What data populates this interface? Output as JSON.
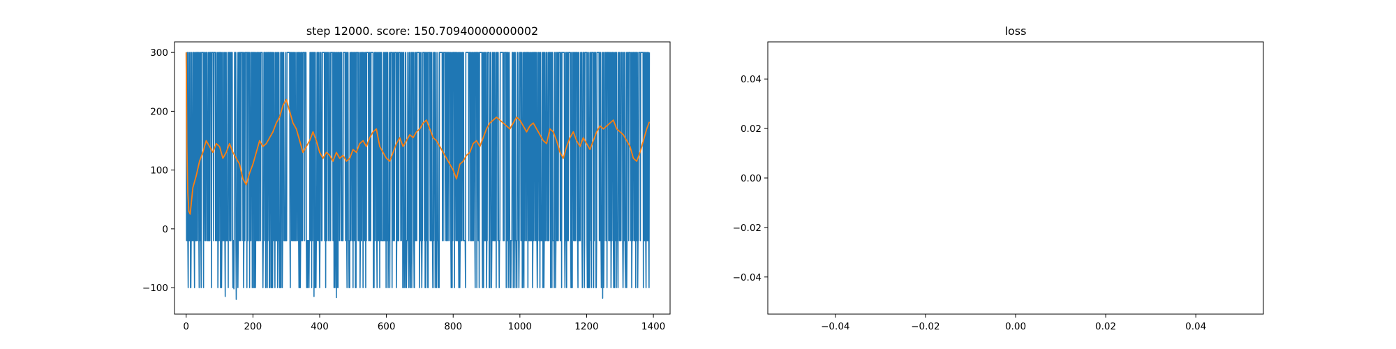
{
  "chart_data": [
    {
      "type": "line",
      "title": "step 12000. score: 150.70940000000002",
      "xlim": [
        -35,
        1450
      ],
      "ylim": [
        -145,
        318
      ],
      "xticks": [
        0,
        200,
        400,
        600,
        800,
        1000,
        1200,
        1400
      ],
      "xtick_labels": [
        "0",
        "200",
        "400",
        "600",
        "800",
        "1000",
        "1200",
        "1400"
      ],
      "yticks": [
        -100,
        0,
        100,
        200,
        300
      ],
      "ytick_labels": [
        "−100",
        "0",
        "100",
        "200",
        "300"
      ],
      "grid": false,
      "series": [
        {
          "color": "#1f77b4",
          "x_range": [
            0,
            1388
          ],
          "levels": [
            300,
            -20,
            -100
          ],
          "rare_values": [
            -120,
            -117,
            -118,
            -115,
            -102,
            98,
            80,
            299
          ],
          "x": [
            0,
            2,
            4,
            6,
            8,
            10,
            12,
            14,
            16,
            18,
            22,
            25,
            30,
            38,
            40,
            45,
            50,
            55,
            60,
            65,
            80,
            95,
            100,
            110,
            120,
            140,
            150,
            160,
            170,
            180,
            190,
            200,
            210,
            220,
            230,
            240,
            245,
            250,
            255,
            260,
            265,
            270,
            280,
            290,
            300,
            320,
            340,
            350,
            360,
            380,
            400,
            420,
            440,
            450,
            460,
            480,
            500,
            520,
            540,
            560,
            580,
            600,
            620,
            640,
            660,
            680,
            700,
            720,
            740,
            760,
            780,
            800,
            820,
            840,
            860,
            880,
            900,
            920,
            940,
            960,
            980,
            1000,
            1020,
            1040,
            1060,
            1080,
            1100,
            1120,
            1140,
            1160,
            1180,
            1200,
            1220,
            1240,
            1248,
            1260,
            1280,
            1300,
            1320,
            1340,
            1350,
            1360,
            1370,
            1380,
            1388
          ],
          "values": [
            300,
            -20,
            300,
            -100,
            300,
            -20,
            300,
            -100,
            300,
            -20,
            300,
            -100,
            300,
            -20,
            300,
            -100,
            300,
            80,
            300,
            -20,
            300,
            -100,
            300,
            -20,
            300,
            -100,
            -120,
            300,
            -20,
            300,
            -100,
            300,
            -20,
            300,
            -100,
            300,
            -20,
            300,
            -100,
            300,
            -20,
            300,
            -100,
            300,
            -20,
            300,
            -100,
            300,
            -20,
            300,
            -100,
            300,
            -20,
            -117,
            98,
            300,
            -100,
            300,
            -20,
            300,
            -100,
            300,
            -20,
            300,
            -100,
            300,
            -20,
            300,
            -100,
            300,
            -20,
            300,
            -100,
            300,
            -20,
            300,
            -100,
            300,
            -20,
            300,
            -100,
            300,
            -20,
            300,
            -100,
            300,
            -20,
            300,
            -100,
            300,
            -20,
            300,
            -100,
            300,
            -118,
            300,
            -20,
            300,
            -100,
            300,
            -20,
            300,
            -100,
            -20,
            300
          ]
        },
        {
          "color": "#ff7f0e",
          "x": [
            0,
            2,
            5,
            8,
            12,
            20,
            30,
            40,
            50,
            60,
            70,
            80,
            90,
            100,
            110,
            120,
            130,
            140,
            150,
            160,
            170,
            180,
            190,
            200,
            210,
            220,
            230,
            240,
            250,
            260,
            270,
            280,
            290,
            300,
            310,
            320,
            330,
            340,
            350,
            360,
            370,
            380,
            390,
            400,
            410,
            420,
            430,
            440,
            450,
            460,
            470,
            480,
            490,
            500,
            510,
            520,
            530,
            540,
            550,
            560,
            570,
            580,
            590,
            600,
            610,
            620,
            630,
            640,
            650,
            660,
            670,
            680,
            690,
            700,
            710,
            720,
            730,
            740,
            750,
            760,
            770,
            780,
            790,
            800,
            810,
            820,
            830,
            840,
            850,
            860,
            870,
            880,
            890,
            900,
            910,
            920,
            930,
            940,
            950,
            960,
            970,
            980,
            990,
            1000,
            1010,
            1020,
            1030,
            1040,
            1050,
            1060,
            1070,
            1080,
            1090,
            1100,
            1110,
            1120,
            1130,
            1140,
            1150,
            1160,
            1170,
            1180,
            1190,
            1200,
            1210,
            1220,
            1230,
            1240,
            1250,
            1260,
            1270,
            1280,
            1290,
            1300,
            1310,
            1320,
            1330,
            1340,
            1350,
            1360,
            1370,
            1380,
            1388
          ],
          "values": [
            300,
            140,
            60,
            30,
            25,
            70,
            90,
            115,
            130,
            150,
            140,
            130,
            145,
            140,
            120,
            130,
            145,
            130,
            120,
            110,
            85,
            75,
            95,
            110,
            130,
            150,
            140,
            145,
            155,
            165,
            180,
            190,
            210,
            220,
            200,
            180,
            170,
            150,
            130,
            140,
            150,
            165,
            150,
            130,
            120,
            130,
            125,
            115,
            130,
            120,
            125,
            115,
            120,
            135,
            130,
            145,
            150,
            140,
            155,
            165,
            170,
            140,
            130,
            120,
            115,
            130,
            145,
            155,
            140,
            150,
            160,
            155,
            165,
            170,
            180,
            185,
            170,
            155,
            150,
            140,
            130,
            120,
            110,
            100,
            85,
            110,
            115,
            125,
            130,
            145,
            150,
            140,
            155,
            170,
            180,
            185,
            190,
            185,
            180,
            175,
            170,
            180,
            190,
            185,
            175,
            165,
            175,
            180,
            170,
            160,
            150,
            145,
            170,
            165,
            150,
            130,
            120,
            140,
            155,
            165,
            150,
            140,
            155,
            145,
            135,
            150,
            165,
            175,
            170,
            175,
            180,
            185,
            170,
            165,
            160,
            150,
            140,
            120,
            115,
            130,
            150,
            170,
            182
          ]
        }
      ]
    },
    {
      "type": "line",
      "title": "loss",
      "xlim": [
        -0.055,
        0.055
      ],
      "ylim": [
        -0.055,
        0.055
      ],
      "xticks": [
        -0.04,
        -0.02,
        0.0,
        0.02,
        0.04
      ],
      "xtick_labels": [
        "−0.04",
        "−0.02",
        "0.00",
        "0.02",
        "0.04"
      ],
      "yticks": [
        -0.04,
        -0.02,
        0.0,
        0.02,
        0.04
      ],
      "ytick_labels": [
        "−0.04",
        "−0.02",
        "0.00",
        "0.02",
        "0.04"
      ],
      "grid": false,
      "series": []
    }
  ]
}
